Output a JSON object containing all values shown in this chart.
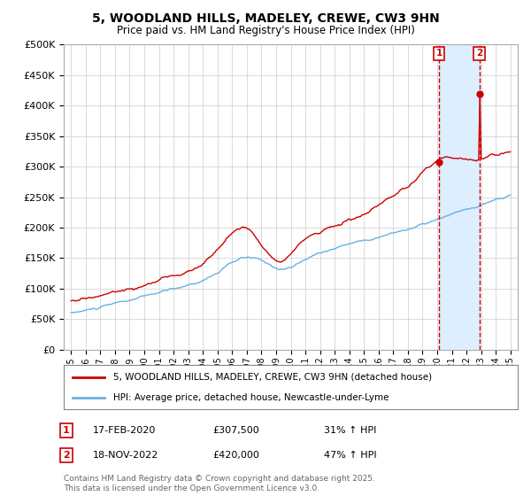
{
  "title": "5, WOODLAND HILLS, MADELEY, CREWE, CW3 9HN",
  "subtitle": "Price paid vs. HM Land Registry's House Price Index (HPI)",
  "legend_entry1": "5, WOODLAND HILLS, MADELEY, CREWE, CW3 9HN (detached house)",
  "legend_entry2": "HPI: Average price, detached house, Newcastle-under-Lyme",
  "annotation1_label": "1",
  "annotation1_date": "17-FEB-2020",
  "annotation1_price": "£307,500",
  "annotation1_pct": "31% ↑ HPI",
  "annotation2_label": "2",
  "annotation2_date": "18-NOV-2022",
  "annotation2_price": "£420,000",
  "annotation2_pct": "47% ↑ HPI",
  "marker1_x": 2020.12,
  "marker2_x": 2022.88,
  "footer": "Contains HM Land Registry data © Crown copyright and database right 2025.\nThis data is licensed under the Open Government Licence v3.0.",
  "hpi_color": "#6ab0e0",
  "price_color": "#cc0000",
  "vline_color": "#cc0000",
  "shade_color": "#ddeeff",
  "background_color": "#ffffff",
  "plot_bg_color": "#ffffff",
  "grid_color": "#cccccc",
  "ylim": [
    0,
    500000
  ],
  "xlim": [
    1994.5,
    2025.5
  ],
  "yticks": [
    0,
    50000,
    100000,
    150000,
    200000,
    250000,
    300000,
    350000,
    400000,
    450000,
    500000
  ],
  "ytick_labels": [
    "£0",
    "£50K",
    "£100K",
    "£150K",
    "£200K",
    "£250K",
    "£300K",
    "£350K",
    "£400K",
    "£450K",
    "£500K"
  ],
  "xticks": [
    1995,
    1996,
    1997,
    1998,
    1999,
    2000,
    2001,
    2002,
    2003,
    2004,
    2005,
    2006,
    2007,
    2008,
    2009,
    2010,
    2011,
    2012,
    2013,
    2014,
    2015,
    2016,
    2017,
    2018,
    2019,
    2020,
    2021,
    2022,
    2023,
    2024,
    2025
  ]
}
